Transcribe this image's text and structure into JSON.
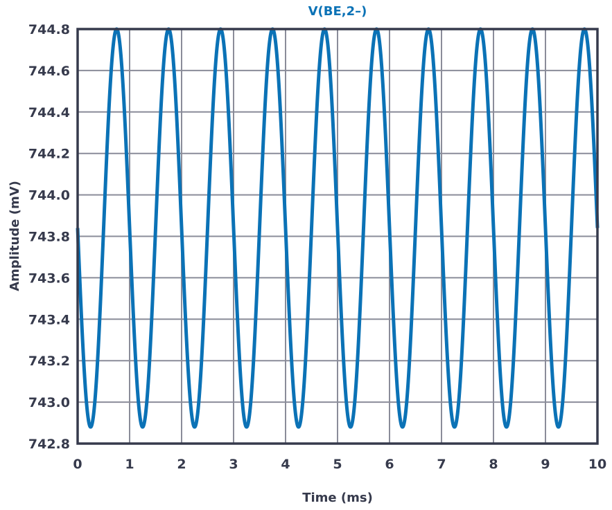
{
  "chart_data": {
    "type": "line",
    "title": "V(BE,2–)",
    "xlabel": "Time (ms)",
    "ylabel": "Amplitude (mV)",
    "xlim": [
      0,
      10
    ],
    "ylim": [
      742.8,
      744.8
    ],
    "x_ticks": [
      "0",
      "1",
      "2",
      "3",
      "4",
      "5",
      "6",
      "7",
      "8",
      "9",
      "10"
    ],
    "y_ticks": [
      "742.8",
      "743.0",
      "743.2",
      "743.4",
      "743.6",
      "743.8",
      "744.0",
      "744.2",
      "744.4",
      "744.6",
      "744.8"
    ],
    "grid": true,
    "legend": null,
    "series": [
      {
        "name": "V(BE,2–)",
        "color": "#0b72b6",
        "waveform": "sine",
        "offset_mV": 743.84,
        "amplitude_mV": 0.96,
        "period_ms": 1.0,
        "phase": "starts at offset, decreasing",
        "x": [
          0,
          0.25,
          0.5,
          0.75,
          1,
          1.25,
          1.5,
          1.75,
          2,
          2.25,
          2.5,
          2.75,
          3,
          3.25,
          3.5,
          3.75,
          4,
          4.25,
          4.5,
          4.75,
          5,
          5.25,
          5.5,
          5.75,
          6,
          6.25,
          6.5,
          6.75,
          7,
          7.25,
          7.5,
          7.75,
          8,
          8.25,
          8.5,
          8.75,
          9,
          9.25,
          9.5,
          9.75,
          10
        ],
        "values": [
          743.84,
          742.88,
          743.84,
          744.8,
          743.84,
          742.88,
          743.84,
          744.8,
          743.84,
          742.88,
          743.84,
          744.8,
          743.84,
          742.88,
          743.84,
          744.8,
          743.84,
          742.88,
          743.84,
          744.8,
          743.84,
          742.88,
          743.84,
          744.8,
          743.84,
          742.88,
          743.84,
          744.8,
          743.84,
          742.88,
          743.84,
          744.8,
          743.84,
          742.88,
          743.84,
          744.8,
          743.84,
          742.88,
          743.84,
          744.8,
          743.84
        ]
      }
    ]
  },
  "colors": {
    "line": "#0b72b6",
    "title": "#0b72b6",
    "axis": "#363a4c",
    "grid": "#8a8c99"
  }
}
